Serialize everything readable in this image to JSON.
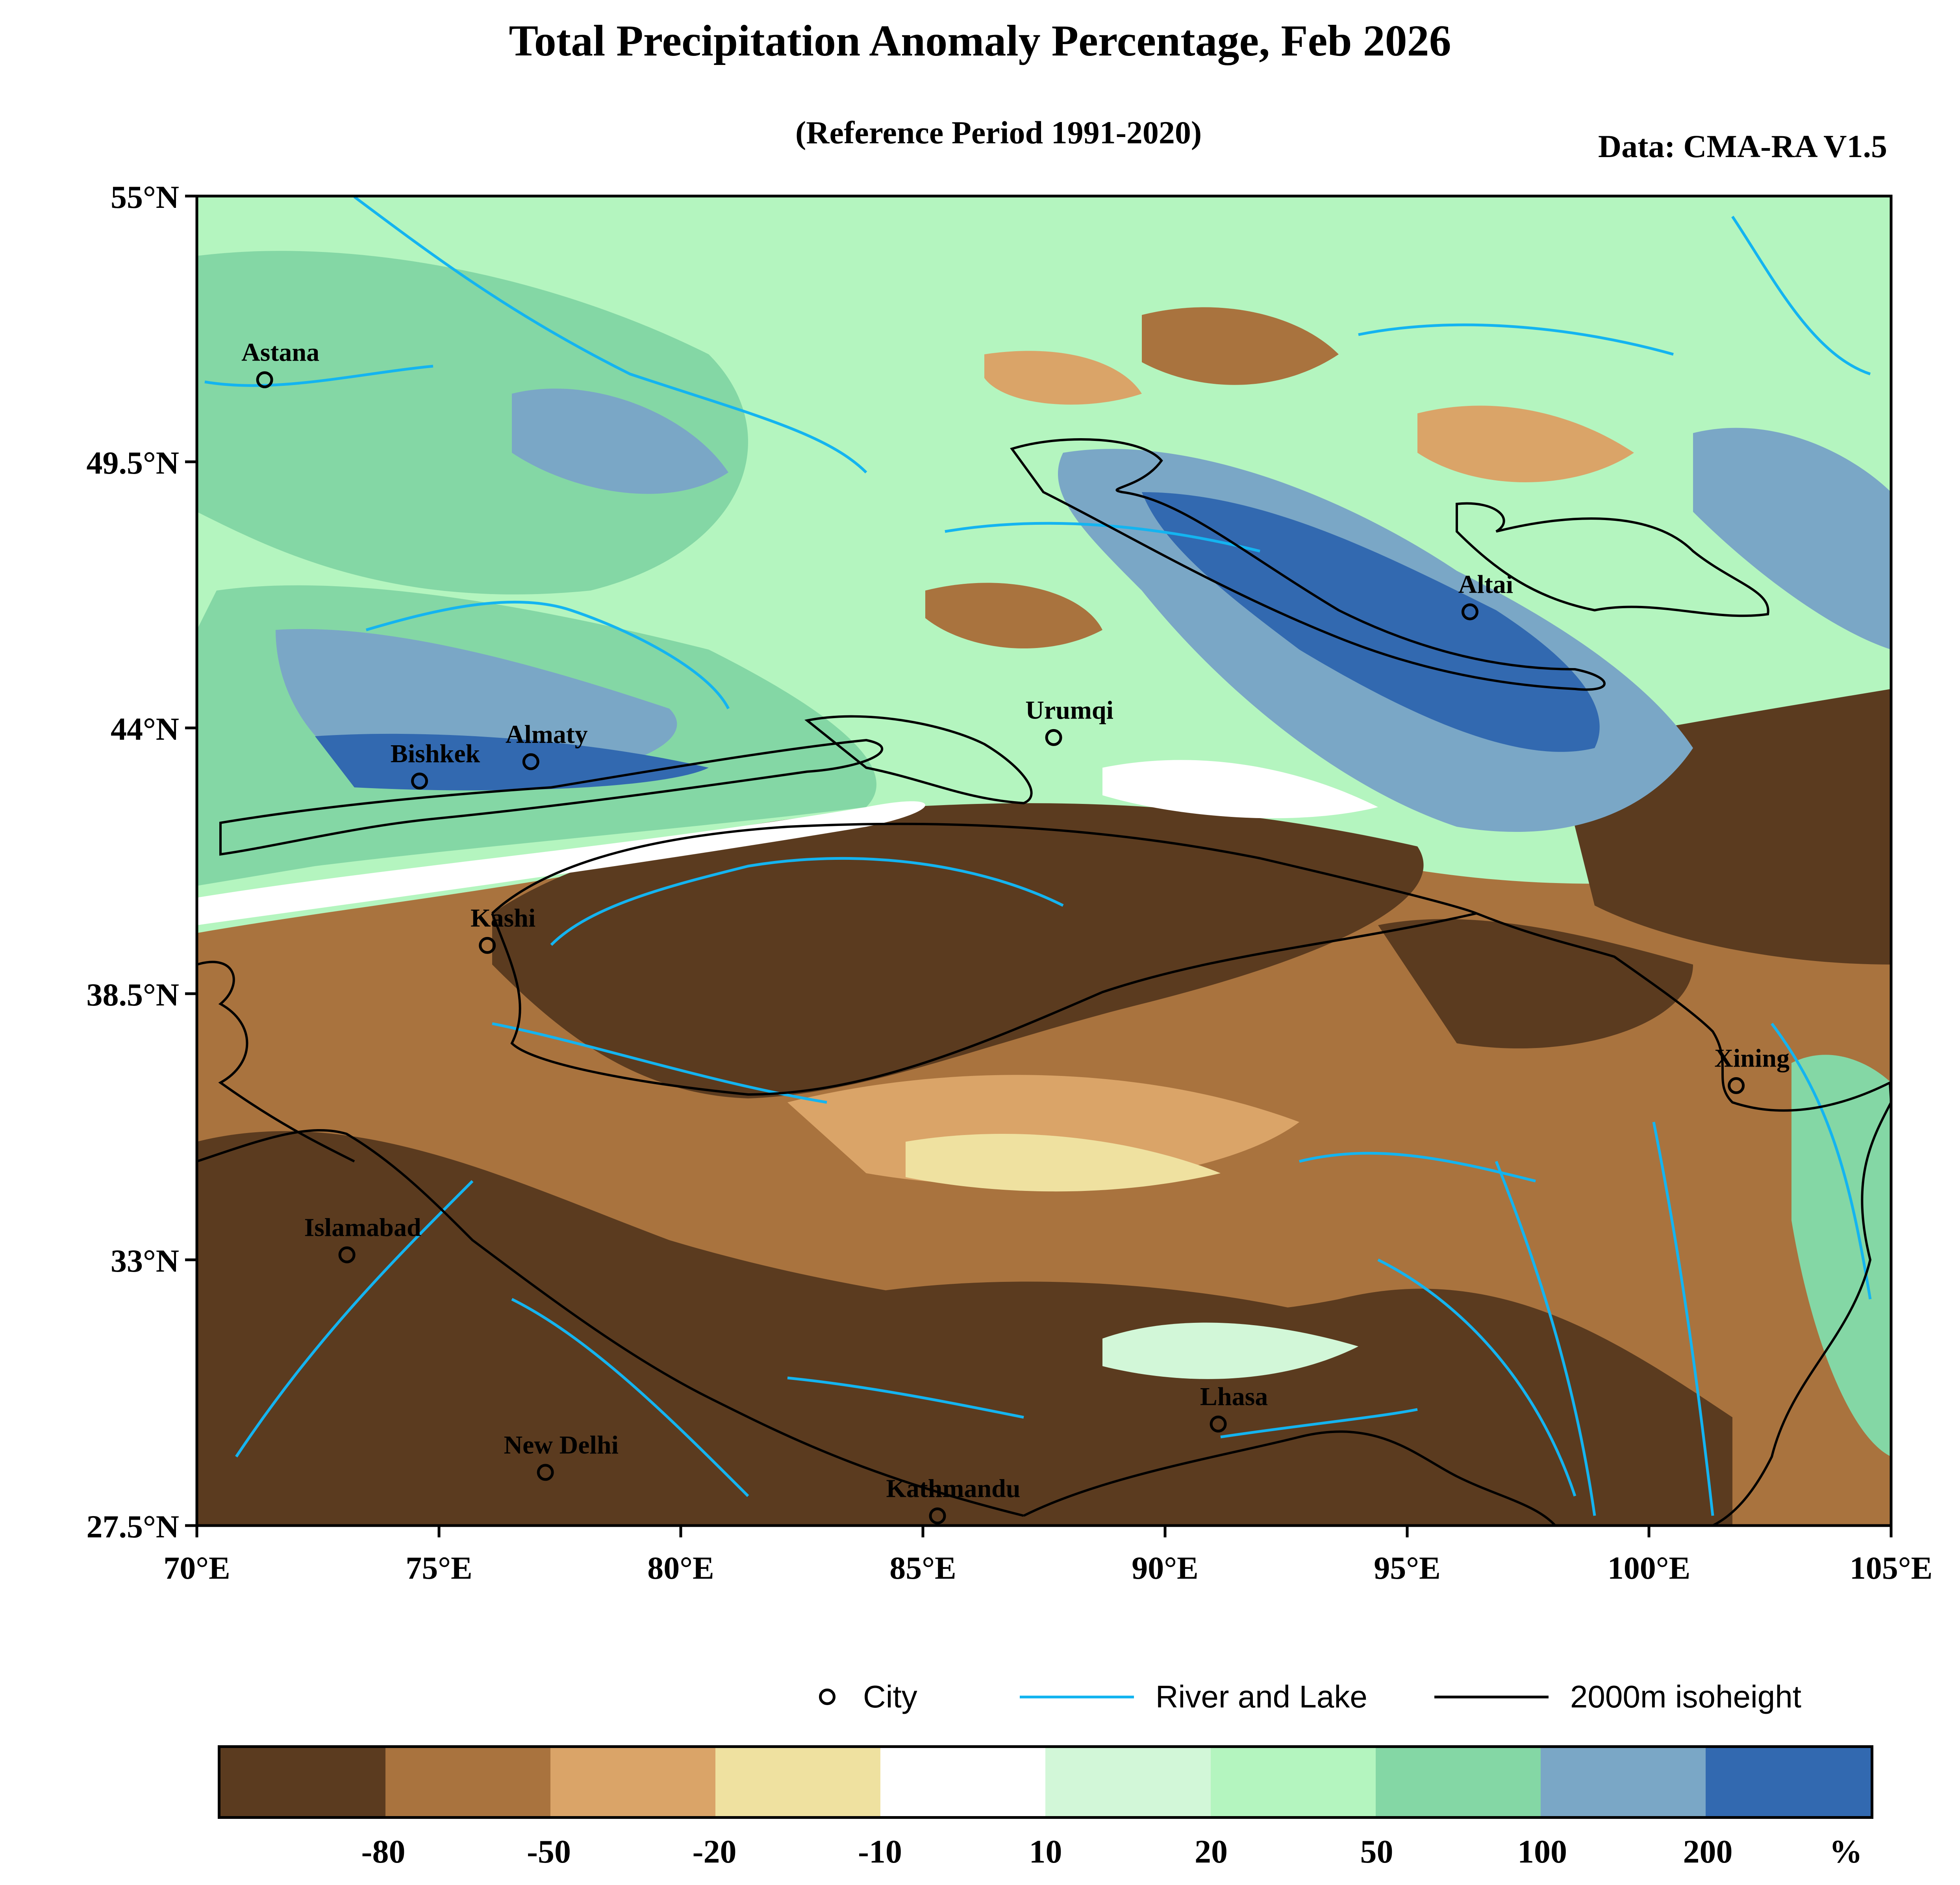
{
  "title": "Total Precipitation Anomaly Percentage, Feb 2026",
  "subtitle": "(Reference Period 1991-2020)",
  "source": "Data: CMA-RA V1.5",
  "map": {
    "lon_range": [
      70,
      105
    ],
    "lat_range": [
      27.5,
      55
    ],
    "lat_ticks": [
      "55°N",
      "49.5°N",
      "44°N",
      "38.5°N",
      "33°N",
      "27.5°N"
    ],
    "lon_ticks": [
      "70°E",
      "75°E",
      "80°E",
      "85°E",
      "90°E",
      "95°E",
      "100°E",
      "105°E"
    ],
    "cities": [
      {
        "name": "Astana",
        "lon": 71.4,
        "lat": 51.2
      },
      {
        "name": "Almaty",
        "lon": 76.9,
        "lat": 43.3
      },
      {
        "name": "Bishkek",
        "lon": 74.6,
        "lat": 42.9
      },
      {
        "name": "Urumqi",
        "lon": 87.7,
        "lat": 43.8
      },
      {
        "name": "Altai",
        "lon": 96.3,
        "lat": 46.4
      },
      {
        "name": "Kashi",
        "lon": 76.0,
        "lat": 39.5
      },
      {
        "name": "Xining",
        "lon": 101.8,
        "lat": 36.6
      },
      {
        "name": "Islamabad",
        "lon": 73.1,
        "lat": 33.1
      },
      {
        "name": "Lhasa",
        "lon": 91.1,
        "lat": 29.6
      },
      {
        "name": "New Delhi",
        "lon": 77.2,
        "lat": 28.6
      },
      {
        "name": "Kathmandu",
        "lon": 85.3,
        "lat": 27.7
      }
    ]
  },
  "legend": {
    "city": "City",
    "river": "River and Lake",
    "isoheight": "2000m isoheight"
  },
  "colorbar": {
    "colors": [
      "#5b3b1f",
      "#a9733e",
      "#daa468",
      "#efe1a0",
      "#ffffff",
      "#d2f7d8",
      "#b4f5bf",
      "#84d7a5",
      "#7aa7c6",
      "#3269b0"
    ],
    "labels": [
      "-80",
      "-50",
      "-20",
      "-10",
      "10",
      "20",
      "50",
      "100",
      "200"
    ],
    "unit": "%"
  },
  "colors": {
    "river": "#14b4f0",
    "isoheight": "#000000"
  }
}
